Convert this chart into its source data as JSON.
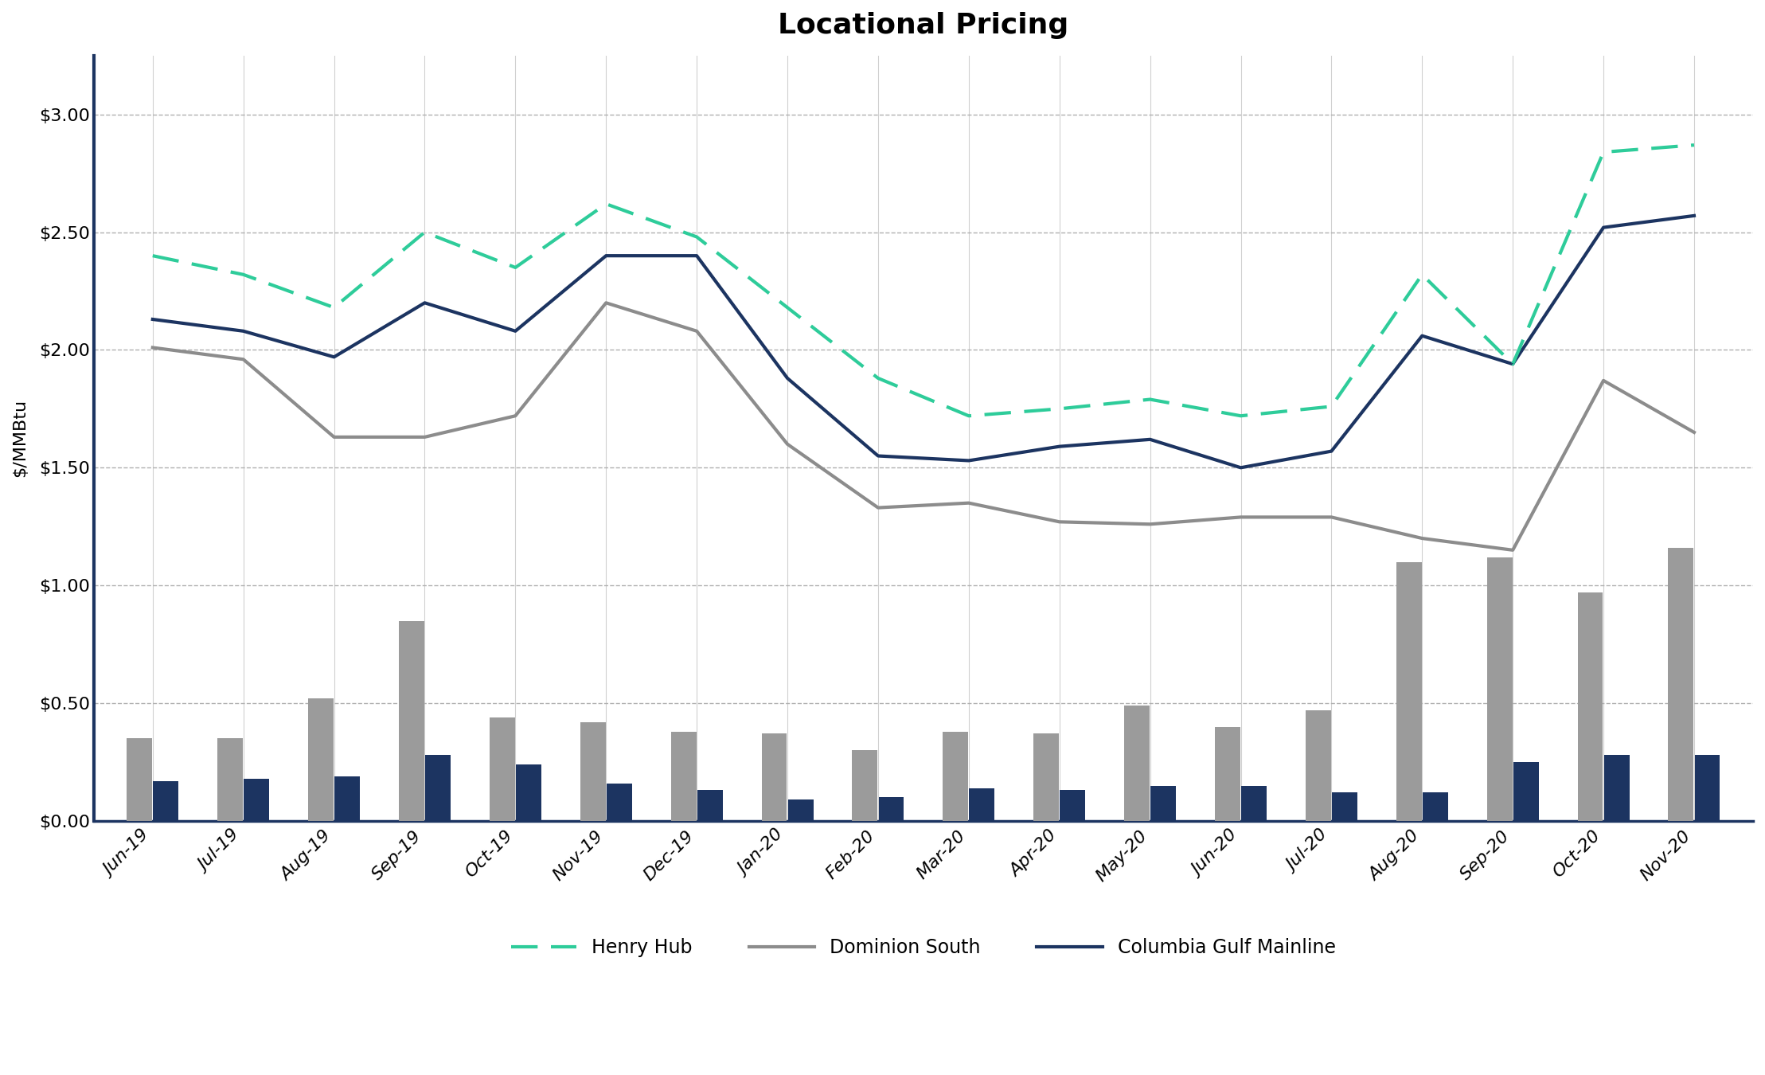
{
  "title": "Locational Pricing",
  "ylabel": "$/MMBtu",
  "categories": [
    "Jun-19",
    "Jul-19",
    "Aug-19",
    "Sep-19",
    "Oct-19",
    "Nov-19",
    "Dec-19",
    "Jan-20",
    "Feb-20",
    "Mar-20",
    "Apr-20",
    "May-20",
    "Jun-20",
    "Jul-20",
    "Aug-20",
    "Sep-20",
    "Oct-20",
    "Nov-20"
  ],
  "henry_hub": [
    2.4,
    2.32,
    2.18,
    2.5,
    2.35,
    2.62,
    2.48,
    2.18,
    1.88,
    1.72,
    1.75,
    1.79,
    1.72,
    1.76,
    2.32,
    1.94,
    2.84,
    2.87
  ],
  "dominion_south": [
    2.01,
    1.96,
    1.63,
    1.63,
    1.72,
    2.2,
    2.08,
    1.6,
    1.33,
    1.35,
    1.27,
    1.26,
    1.29,
    1.29,
    1.2,
    1.15,
    1.87,
    1.65
  ],
  "columbia_gulf": [
    2.13,
    2.08,
    1.97,
    2.2,
    2.08,
    2.4,
    2.4,
    1.88,
    1.55,
    1.53,
    1.59,
    1.62,
    1.5,
    1.57,
    2.06,
    1.94,
    2.52,
    2.57
  ],
  "bar1": [
    0.35,
    0.35,
    0.52,
    0.85,
    0.44,
    0.42,
    0.38,
    0.37,
    0.3,
    0.38,
    0.37,
    0.49,
    0.4,
    0.47,
    1.1,
    1.12,
    0.97,
    1.16
  ],
  "bar2": [
    0.17,
    0.18,
    0.19,
    0.28,
    0.24,
    0.16,
    0.13,
    0.09,
    0.1,
    0.14,
    0.13,
    0.15,
    0.15,
    0.12,
    0.12,
    0.25,
    0.28,
    0.28
  ],
  "henry_hub_color": "#2ecc9a",
  "dominion_south_color": "#8c8c8c",
  "columbia_gulf_color": "#1c3461",
  "bar1_color": "#9b9b9b",
  "bar2_color": "#1c3461",
  "spine_color": "#1c3461",
  "background_color": "#ffffff",
  "grid_color_y": "#b0b0b0",
  "grid_color_x": "#d0d0d0",
  "ylim": [
    0.0,
    3.25
  ],
  "yticks": [
    0.0,
    0.5,
    1.0,
    1.5,
    2.0,
    2.5,
    3.0
  ],
  "title_fontsize": 26,
  "axis_fontsize": 16,
  "tick_fontsize": 16,
  "legend_fontsize": 17,
  "line_width": 3.0,
  "bar_width": 0.28
}
